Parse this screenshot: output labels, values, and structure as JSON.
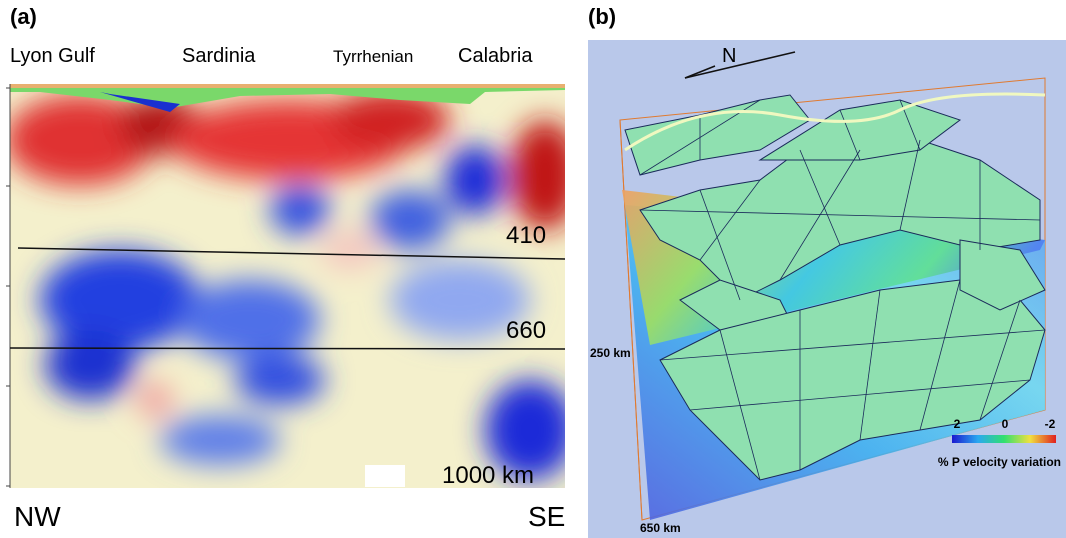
{
  "panel_a": {
    "label": "(a)",
    "regions": [
      "Lyon Gulf",
      "Sardinia",
      "Tyrrhenian",
      "Calabria"
    ],
    "depths": [
      "410",
      "660",
      "1000 km"
    ],
    "ends": [
      "NW",
      "SE"
    ]
  },
  "panel_b": {
    "label": "(b)",
    "north": "N",
    "depths": [
      "250 km",
      "650 km"
    ],
    "colorbar": {
      "ticks": [
        2,
        0,
        -2
      ],
      "title": "% P velocity variation"
    }
  }
}
